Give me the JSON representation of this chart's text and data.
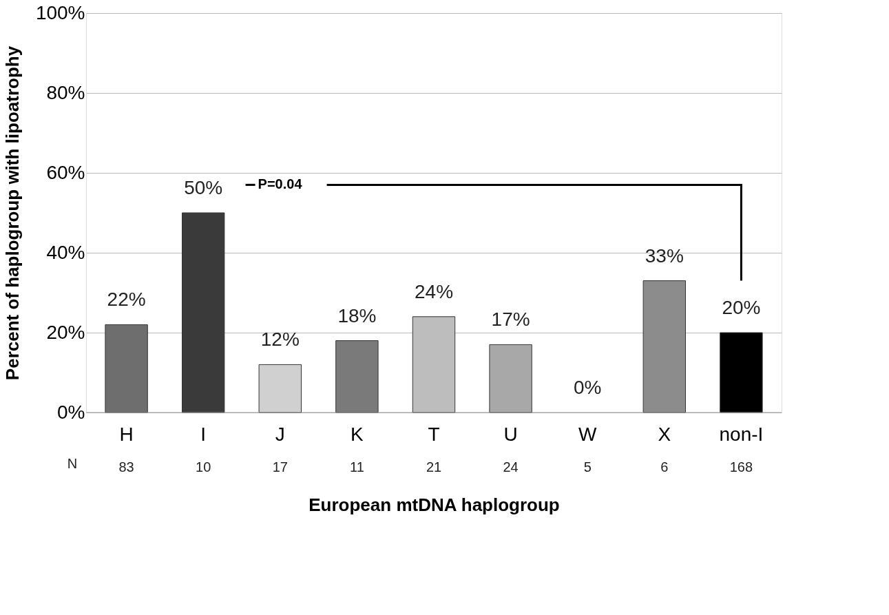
{
  "chart_data": {
    "type": "bar",
    "xlabel": "European mtDNA haplogroup",
    "ylabel": "Percent of haplogroup with lipoatrophy",
    "categories": [
      "H",
      "I",
      "J",
      "K",
      "T",
      "U",
      "W",
      "X",
      "non-I"
    ],
    "values": [
      22,
      50,
      12,
      18,
      24,
      17,
      0,
      33,
      20
    ],
    "colors": [
      "#6e6e6e",
      "#3a3a3a",
      "#d0d0d0",
      "#7a7a7a",
      "#bdbdbd",
      "#a8a8a8",
      "#ffffff",
      "#8c8c8c",
      "#000000"
    ],
    "value_labels": [
      "22%",
      "50%",
      "12%",
      "18%",
      "24%",
      "17%",
      "0%",
      "33%",
      "20%"
    ],
    "ylim": [
      0,
      100
    ],
    "yticks": [
      {
        "value": 0,
        "label": "0%"
      },
      {
        "value": 20,
        "label": "20%"
      },
      {
        "value": 40,
        "label": "40%"
      },
      {
        "value": 60,
        "label": "60%"
      },
      {
        "value": 80,
        "label": "80%"
      },
      {
        "value": 100,
        "label": "100%"
      }
    ],
    "grid": "y",
    "annotations": [
      "P=0.04",
      "N",
      "83",
      "10",
      "17",
      "11",
      "21",
      "24",
      "5",
      "6",
      "168"
    ]
  }
}
